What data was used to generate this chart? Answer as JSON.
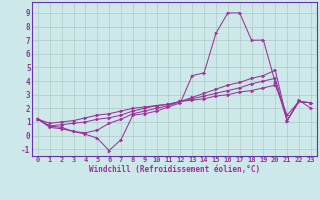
{
  "xlabel": "Windchill (Refroidissement éolien,°C)",
  "background_color": "#cce8e8",
  "grid_color": "#b0c8c8",
  "line_color": "#993399",
  "spine_color": "#6633aa",
  "xmin": -0.5,
  "xmax": 23.5,
  "ymin": -1.5,
  "ymax": 9.8,
  "yticks": [
    -1,
    0,
    1,
    2,
    3,
    4,
    5,
    6,
    7,
    8,
    9
  ],
  "xticks": [
    0,
    1,
    2,
    3,
    4,
    5,
    6,
    7,
    8,
    9,
    10,
    11,
    12,
    13,
    14,
    15,
    16,
    17,
    18,
    19,
    20,
    21,
    22,
    23
  ],
  "series": [
    [
      1.2,
      0.7,
      0.6,
      0.3,
      0.1,
      -0.2,
      -1.1,
      -0.3,
      1.5,
      1.6,
      1.8,
      2.1,
      2.4,
      4.4,
      4.6,
      7.5,
      9.0,
      9.0,
      7.0,
      7.0,
      3.9,
      1.1,
      2.6,
      2.0
    ],
    [
      1.2,
      0.6,
      0.5,
      0.3,
      0.2,
      0.4,
      0.9,
      1.2,
      1.6,
      1.8,
      2.0,
      2.2,
      2.5,
      2.8,
      3.1,
      3.4,
      3.7,
      3.9,
      4.2,
      4.4,
      4.8,
      1.1,
      2.5,
      2.4
    ],
    [
      1.2,
      0.7,
      0.8,
      0.9,
      1.0,
      1.2,
      1.3,
      1.5,
      1.8,
      2.0,
      2.2,
      2.3,
      2.5,
      2.7,
      2.9,
      3.1,
      3.3,
      3.5,
      3.8,
      4.0,
      4.2,
      1.1,
      2.5,
      2.4
    ],
    [
      1.2,
      0.9,
      1.0,
      1.1,
      1.3,
      1.5,
      1.6,
      1.8,
      2.0,
      2.1,
      2.2,
      2.3,
      2.5,
      2.6,
      2.7,
      2.9,
      3.0,
      3.2,
      3.3,
      3.5,
      3.7,
      1.5,
      2.5,
      2.4
    ]
  ],
  "tick_fontsize": 5.0,
  "xlabel_fontsize": 5.5
}
